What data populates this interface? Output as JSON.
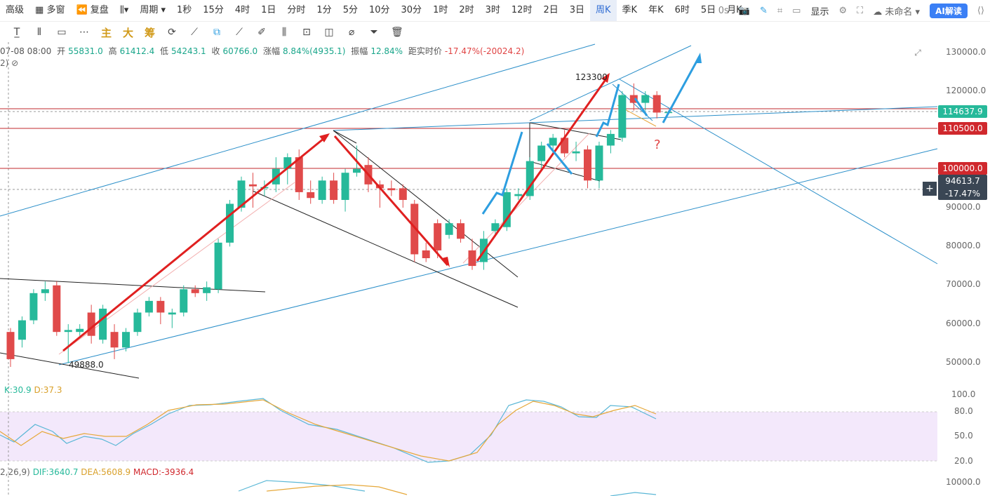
{
  "toolbar": {
    "items": [
      "高级",
      "多窗",
      "复盘",
      "",
      "周期",
      "1秒",
      "15分",
      "4时",
      "1日",
      "分时",
      "1分",
      "5分",
      "10分",
      "30分",
      "1时",
      "2时",
      "3时",
      "12时",
      "2日",
      "3日",
      "周K",
      "季K",
      "年K",
      "6时",
      "5日",
      "月K"
    ],
    "active_index": 20,
    "indicator_btn": "指标",
    "zero_s": "0s",
    "show_label": "显示",
    "unnamed_label": "未命名",
    "ai_label": "AI解读"
  },
  "drawbar": {
    "texts": [
      "主",
      "大",
      "筹"
    ]
  },
  "ohlc": {
    "date": "07-08 08:00",
    "open_label": "开",
    "open": "55831.0",
    "high_label": "高",
    "high": "61412.4",
    "low_label": "低",
    "low": "54243.1",
    "close_label": "收",
    "close": "60766.0",
    "chg_label": "涨幅",
    "chg": "8.84%(4935.1)",
    "amp_label": "振幅",
    "amp": "12.84%",
    "dist_label": "距实时价",
    "dist": "-17.47%(-20024.2)",
    "sub": "2)"
  },
  "price_axis": [
    "130000.0",
    "120000.0",
    "90000.0",
    "80000.0",
    "70000.0",
    "60000.0",
    "50000.0"
  ],
  "price_tags": {
    "current": "114637.9",
    "level1": "110500.0",
    "level2": "100000.0",
    "cursor_price": "94613.7",
    "cursor_pct": "-17.47%"
  },
  "annotations": {
    "high": "123300",
    "low": "49888.0",
    "question": "?"
  },
  "kdj": {
    "k": "K:30.9",
    "d": "D:37.3",
    "axis": [
      "100.0",
      "80.0",
      "50.0",
      "20.0"
    ]
  },
  "macd": {
    "params": "2,26,9)",
    "dif": "DIF:3640.7",
    "dea": "DEA:5608.9",
    "macd": "MACD:-3936.4",
    "axis": "10000.0"
  },
  "colors": {
    "up": "#26b99a",
    "down": "#e04a4a",
    "red_arrow": "#e02020",
    "blue_arrow": "#2d9ee0",
    "channel": "#2b8fc9",
    "hline": "#c0282d",
    "kdj_band": "#f3e8fb"
  },
  "candles": [
    {
      "o": 58000,
      "c": 51000,
      "h": 59000,
      "l": 49000
    },
    {
      "o": 56000,
      "c": 61000,
      "h": 62000,
      "l": 54000
    },
    {
      "o": 61000,
      "c": 68000,
      "h": 69000,
      "l": 60000
    },
    {
      "o": 68000,
      "c": 69000,
      "h": 71000,
      "l": 66000
    },
    {
      "o": 70000,
      "c": 58000,
      "h": 71000,
      "l": 57000
    },
    {
      "o": 58000,
      "c": 58500,
      "h": 60000,
      "l": 50000
    },
    {
      "o": 58000,
      "c": 58800,
      "h": 60000,
      "l": 57000
    },
    {
      "o": 63000,
      "c": 57000,
      "h": 65000,
      "l": 55000
    },
    {
      "o": 56000,
      "c": 64000,
      "h": 65000,
      "l": 55000
    },
    {
      "o": 58000,
      "c": 54000,
      "h": 60000,
      "l": 51000
    },
    {
      "o": 54000,
      "c": 58000,
      "h": 59000,
      "l": 53000
    },
    {
      "o": 58000,
      "c": 63000,
      "h": 64000,
      "l": 57000
    },
    {
      "o": 63000,
      "c": 66000,
      "h": 67000,
      "l": 62000
    },
    {
      "o": 66000,
      "c": 63000,
      "h": 67000,
      "l": 60000
    },
    {
      "o": 62500,
      "c": 63000,
      "h": 64000,
      "l": 59000
    },
    {
      "o": 63000,
      "c": 69000,
      "h": 70000,
      "l": 62000
    },
    {
      "o": 69000,
      "c": 68000,
      "h": 70000,
      "l": 67000
    },
    {
      "o": 68000,
      "c": 69500,
      "h": 71000,
      "l": 66000
    },
    {
      "o": 69000,
      "c": 81000,
      "h": 82000,
      "l": 68000
    },
    {
      "o": 81000,
      "c": 91000,
      "h": 92000,
      "l": 80000
    },
    {
      "o": 90000,
      "c": 97000,
      "h": 98000,
      "l": 89000
    },
    {
      "o": 96000,
      "c": 95500,
      "h": 99000,
      "l": 90000
    },
    {
      "o": 95000,
      "c": 95300,
      "h": 97000,
      "l": 93000
    },
    {
      "o": 96000,
      "c": 100000,
      "h": 103000,
      "l": 94000
    },
    {
      "o": 100000,
      "c": 103000,
      "h": 104000,
      "l": 96000
    },
    {
      "o": 103000,
      "c": 94000,
      "h": 105000,
      "l": 92000
    },
    {
      "o": 94000,
      "c": 92500,
      "h": 97000,
      "l": 91000
    },
    {
      "o": 92000,
      "c": 97000,
      "h": 98000,
      "l": 91000
    },
    {
      "o": 97000,
      "c": 92000,
      "h": 99000,
      "l": 91000
    },
    {
      "o": 92000,
      "c": 99000,
      "h": 100000,
      "l": 89000
    },
    {
      "o": 99000,
      "c": 100000,
      "h": 106000,
      "l": 98000
    },
    {
      "o": 101000,
      "c": 96000,
      "h": 103000,
      "l": 94000
    },
    {
      "o": 96000,
      "c": 95000,
      "h": 97000,
      "l": 90000
    },
    {
      "o": 95000,
      "c": 94500,
      "h": 97000,
      "l": 93000
    },
    {
      "o": 95000,
      "c": 92000,
      "h": 96000,
      "l": 90000
    },
    {
      "o": 91000,
      "c": 78000,
      "h": 92000,
      "l": 76000
    },
    {
      "o": 79000,
      "c": 77000,
      "h": 81000,
      "l": 76000
    },
    {
      "o": 86000,
      "c": 79000,
      "h": 87000,
      "l": 77000
    },
    {
      "o": 83000,
      "c": 86000,
      "h": 87000,
      "l": 82000
    },
    {
      "o": 86000,
      "c": 82000,
      "h": 87000,
      "l": 81000
    },
    {
      "o": 79000,
      "c": 75000,
      "h": 82000,
      "l": 74000
    },
    {
      "o": 76000,
      "c": 82000,
      "h": 84000,
      "l": 74000
    },
    {
      "o": 84000,
      "c": 86000,
      "h": 87000,
      "l": 83000
    },
    {
      "o": 85000,
      "c": 94000,
      "h": 95000,
      "l": 84000
    },
    {
      "o": 93000,
      "c": 93500,
      "h": 95000,
      "l": 92000
    },
    {
      "o": 93000,
      "c": 102000,
      "h": 103000,
      "l": 92000
    },
    {
      "o": 102000,
      "c": 106000,
      "h": 107000,
      "l": 100000
    },
    {
      "o": 106000,
      "c": 108000,
      "h": 109000,
      "l": 104000
    },
    {
      "o": 108000,
      "c": 104000,
      "h": 110000,
      "l": 103000
    },
    {
      "o": 104000,
      "c": 104500,
      "h": 107000,
      "l": 102000
    },
    {
      "o": 105000,
      "c": 97000,
      "h": 106000,
      "l": 95000
    },
    {
      "o": 97000,
      "c": 106000,
      "h": 107000,
      "l": 95000
    },
    {
      "o": 106000,
      "c": 109000,
      "h": 110000,
      "l": 104000
    },
    {
      "o": 108000,
      "c": 119000,
      "h": 120000,
      "l": 107000
    },
    {
      "o": 119000,
      "c": 117000,
      "h": 122000,
      "l": 115000
    },
    {
      "o": 117000,
      "c": 119000,
      "h": 120000,
      "l": 115000
    },
    {
      "o": 119000,
      "c": 114500,
      "h": 120000,
      "l": 113000
    },
    {
      "o": 114500,
      "c": 114637,
      "h": 115000,
      "l": 114000
    }
  ]
}
